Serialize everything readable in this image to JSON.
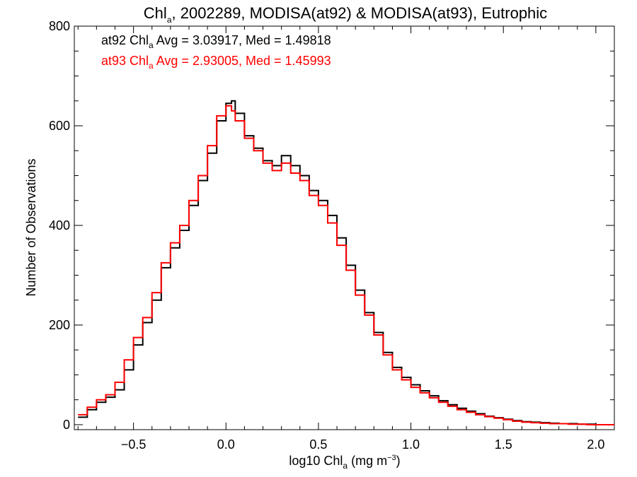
{
  "chart_data": {
    "type": "line",
    "title": {
      "pre": "Chl",
      "sub": "a",
      "post": ", 2002289, MODISA(at92) & MODISA(at93), Eutrophic"
    },
    "xlabel": {
      "pre": "log10 Chl",
      "sub": "a",
      "mid": " (mg m",
      "sup": "−3",
      "post": ")"
    },
    "ylabel": "Number of Observations",
    "xlim": [
      -0.82,
      2.1
    ],
    "ylim": [
      -10,
      800
    ],
    "x_ticks": [
      -0.5,
      0.0,
      0.5,
      1.0,
      1.5,
      2.0
    ],
    "x_tick_labels": [
      "−0.5",
      "0.0",
      "0.5",
      "1.0",
      "1.5",
      "2.0"
    ],
    "y_ticks": [
      0,
      200,
      400,
      600,
      800
    ],
    "y_tick_labels": [
      "0",
      "200",
      "400",
      "600",
      "800"
    ],
    "grid": false,
    "legend_placement": "top-left",
    "annotations": [
      {
        "pre": "at92 Chl",
        "sub": "a",
        "post": " Avg = 3.03917, Med = 1.49818",
        "color": "#000000"
      },
      {
        "pre": "at93 Chl",
        "sub": "a",
        "post": " Avg = 2.93005, Med = 1.45993",
        "color": "#ff0000"
      }
    ],
    "series": [
      {
        "color": "#000000",
        "x": [
          -0.8,
          -0.75,
          -0.7,
          -0.65,
          -0.6,
          -0.55,
          -0.5,
          -0.45,
          -0.4,
          -0.35,
          -0.3,
          -0.25,
          -0.2,
          -0.15,
          -0.1,
          -0.05,
          0.0,
          0.03,
          0.05,
          0.1,
          0.15,
          0.2,
          0.25,
          0.3,
          0.35,
          0.4,
          0.45,
          0.5,
          0.55,
          0.6,
          0.65,
          0.7,
          0.75,
          0.8,
          0.85,
          0.9,
          0.95,
          1.0,
          1.05,
          1.1,
          1.15,
          1.2,
          1.25,
          1.3,
          1.35,
          1.4,
          1.45,
          1.5,
          1.55,
          1.6,
          1.65,
          1.7,
          1.75,
          1.8,
          1.85,
          1.9,
          1.95,
          2.0,
          2.05,
          2.1
        ],
        "y": [
          15,
          30,
          45,
          55,
          70,
          110,
          160,
          205,
          250,
          315,
          355,
          390,
          440,
          490,
          545,
          610,
          645,
          650,
          625,
          580,
          555,
          530,
          520,
          540,
          520,
          500,
          470,
          450,
          420,
          375,
          320,
          270,
          225,
          185,
          145,
          115,
          95,
          80,
          68,
          58,
          48,
          40,
          33,
          27,
          22,
          17,
          14,
          11,
          8,
          6,
          5,
          4,
          3,
          2,
          2,
          1,
          1,
          0,
          0,
          0
        ]
      },
      {
        "color": "#ff0000",
        "x": [
          -0.8,
          -0.75,
          -0.7,
          -0.65,
          -0.6,
          -0.55,
          -0.5,
          -0.45,
          -0.4,
          -0.35,
          -0.3,
          -0.25,
          -0.2,
          -0.15,
          -0.1,
          -0.05,
          0.0,
          0.03,
          0.05,
          0.1,
          0.15,
          0.2,
          0.25,
          0.3,
          0.35,
          0.4,
          0.45,
          0.5,
          0.55,
          0.6,
          0.65,
          0.7,
          0.75,
          0.8,
          0.85,
          0.9,
          0.95,
          1.0,
          1.05,
          1.1,
          1.15,
          1.2,
          1.25,
          1.3,
          1.35,
          1.4,
          1.45,
          1.5,
          1.55,
          1.6,
          1.65,
          1.7,
          1.75,
          1.8,
          1.85,
          1.9,
          1.95,
          2.0,
          2.05,
          2.1
        ],
        "y": [
          20,
          35,
          50,
          60,
          85,
          130,
          175,
          215,
          265,
          325,
          365,
          400,
          450,
          500,
          560,
          620,
          640,
          630,
          610,
          575,
          550,
          525,
          510,
          525,
          505,
          490,
          460,
          440,
          405,
          360,
          310,
          260,
          220,
          180,
          140,
          110,
          90,
          75,
          64,
          54,
          45,
          37,
          30,
          25,
          20,
          16,
          13,
          10,
          7,
          5,
          4,
          3,
          2,
          2,
          1,
          1,
          0,
          0,
          0,
          0
        ]
      }
    ]
  }
}
